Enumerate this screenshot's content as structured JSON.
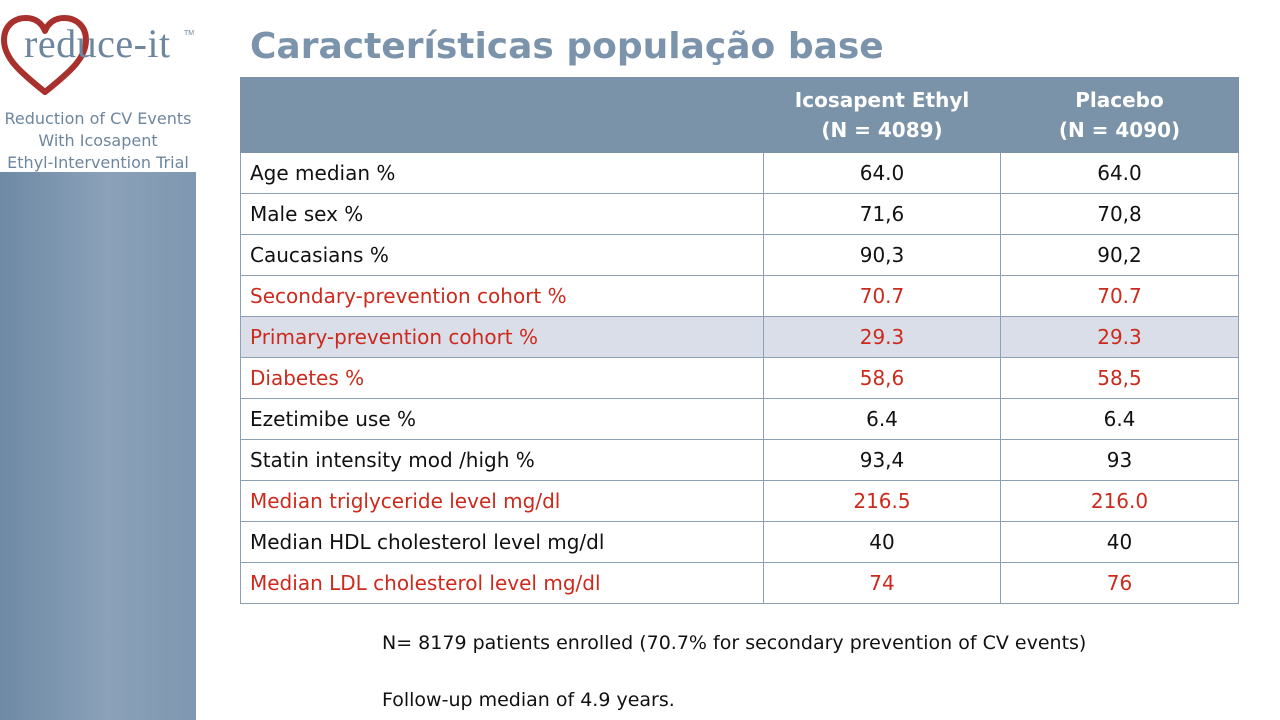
{
  "logo": {
    "word": "reduce-it",
    "tm": "TM",
    "subtitle_line1": "Reduction of CV Events",
    "subtitle_line2": "With Icosapent",
    "subtitle_line3": "Ethyl-Intervention Trial",
    "heart_color": "#a8312e",
    "text_color": "#6d86a0"
  },
  "title": "Características população base",
  "table": {
    "headers": [
      {
        "line1": "",
        "line2": ""
      },
      {
        "line1": "Icosapent Ethyl",
        "line2": "(N = 4089)"
      },
      {
        "line1": "Placebo",
        "line2": "(N = 4090)"
      }
    ],
    "rows": [
      {
        "label": "Age median %",
        "icosapent": "64.0",
        "placebo": "64.0",
        "highlight": false
      },
      {
        "label": "Male sex %",
        "icosapent": "71,6",
        "placebo": "70,8",
        "highlight": false
      },
      {
        "label": "Caucasians %",
        "icosapent": "90,3",
        "placebo": "90,2",
        "highlight": false
      },
      {
        "label": "Secondary-prevention cohort %",
        "icosapent": "70.7",
        "placebo": "70.7",
        "highlight": true
      },
      {
        "label": "Primary-prevention cohort %",
        "icosapent": "29.3",
        "placebo": "29.3",
        "highlight": true
      },
      {
        "label": "Diabetes %",
        "icosapent": "58,6",
        "placebo": "58,5",
        "highlight": true
      },
      {
        "label": "Ezetimibe use  %",
        "icosapent": "6.4",
        "placebo": "6.4",
        "highlight": false
      },
      {
        "label": "Statin intensity  mod /high %",
        "icosapent": "93,4",
        "placebo": "93",
        "highlight": false
      },
      {
        "label": "Median triglyceride level mg/dl",
        "icosapent": "216.5",
        "placebo": "216.0",
        "highlight": true
      },
      {
        "label": "Median HDL cholesterol level mg/dl",
        "icosapent": "40",
        "placebo": "40",
        "highlight": false
      },
      {
        "label": "Median LDL cholesterol level mg/dl",
        "icosapent": "74",
        "placebo": "76",
        "highlight": true
      }
    ]
  },
  "notes": {
    "enrolled": "N= 8179 patients enrolled (70.7% for secondary prevention of  CV events)",
    "followup": "Follow-up  median of 4.9 years."
  },
  "colors": {
    "header_bg": "#7b93a8",
    "highlight_text": "#cc2a1c",
    "shaded_row_bg": "#d9dee8",
    "title": "#7b93ab"
  }
}
